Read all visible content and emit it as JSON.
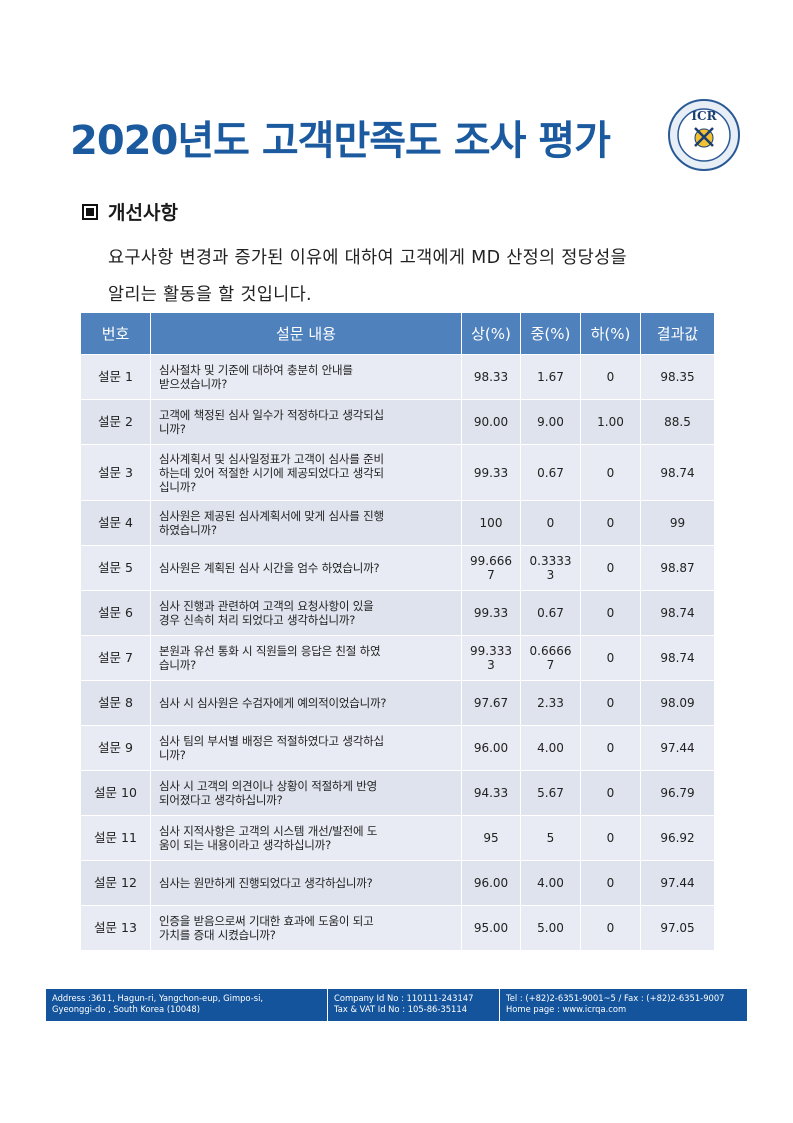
{
  "title": "2020년도 고객만족도 조사 평가",
  "logo_text": "ICR",
  "section": {
    "heading": "개선사항",
    "body_line1": "요구사항 변경과 증가된 이유에 대하여 고객에게 MD 산정의 정당성을",
    "body_line2": "알리는 활동을 할 것입니다."
  },
  "table": {
    "headers": [
      "번호",
      "설문 내용",
      "상(%)",
      "중(%)",
      "하(%)",
      "결과값"
    ],
    "rows": [
      {
        "no": "설문 1",
        "q1": "심사절차 및 기준에 대하여 충분히 안내를",
        "q2": "받으셨습니까?",
        "high": "98.33",
        "mid": "1.67",
        "low": "0",
        "result": "98.35"
      },
      {
        "no": "설문 2",
        "q1": "고객에 책정된 심사 일수가 적정하다고 생각되십",
        "q2": "니까?",
        "high": "90.00",
        "mid": "9.00",
        "low": "1.00",
        "result": "88.5"
      },
      {
        "no": "설문 3",
        "q1": "심사계획서 및 심사일정표가 고객이 심사를 준비",
        "q2": "하는데 있어 적절한 시기에 제공되었다고 생각되",
        "q3": "십니까?",
        "high": "99.33",
        "mid": "0.67",
        "low": "0",
        "result": "98.74"
      },
      {
        "no": "설문 4",
        "q1": "심사원은 제공된 심사계획서에 맞게 심사를 진행",
        "q2": "하였습니까?",
        "high": "100",
        "mid": "0",
        "low": "0",
        "result": "99"
      },
      {
        "no": "설문 5",
        "q1": "심사원은 계획된 심사 시간을 엄수 하였습니까?",
        "high1": "99.666",
        "high2": "7",
        "mid1": "0.3333",
        "mid2": "3",
        "low": "0",
        "result": "98.87"
      },
      {
        "no": "설문 6",
        "q1": "심사 진행과 관련하여 고객의 요청사항이 있을",
        "q2": "경우 신속히 처리 되었다고 생각하십니까?",
        "high": "99.33",
        "mid": "0.67",
        "low": "0",
        "result": "98.74"
      },
      {
        "no": "설문 7",
        "q1": "본원과 유선 통화 시 직원들의 응답은 친절 하였",
        "q2": "습니까?",
        "high1": "99.333",
        "high2": "3",
        "mid1": "0.6666",
        "mid2": "7",
        "low": "0",
        "result": "98.74"
      },
      {
        "no": "설문 8",
        "q1": "심사 시 심사원은 수검자에게 예의적이었습니까?",
        "high": "97.67",
        "mid": "2.33",
        "low": "0",
        "result": "98.09"
      },
      {
        "no": "설문 9",
        "q1": "심사 팀의 부서별 배정은 적절하였다고 생각하십",
        "q2": "니까?",
        "high": "96.00",
        "mid": "4.00",
        "low": "0",
        "result": "97.44"
      },
      {
        "no": "설문 10",
        "q1": "심사 시 고객의 의견이나 상황이 적절하게 반영",
        "q2": "되어졌다고 생각하십니까?",
        "high": "94.33",
        "mid": "5.67",
        "low": "0",
        "result": "96.79"
      },
      {
        "no": "설문 11",
        "q1": "심사 지적사항은 고객의 시스템 개선/발전에 도",
        "q2": "움이 되는 내용이라고 생각하십니까?",
        "high": "95",
        "mid": "5",
        "low": "0",
        "result": "96.92"
      },
      {
        "no": "설문 12",
        "q1": "심사는 원만하게 진행되었다고 생각하십니까?",
        "high": "96.00",
        "mid": "4.00",
        "low": "0",
        "result": "97.44"
      },
      {
        "no": "설문 13",
        "q1": "인증을 받음으로써 기대한 효과에 도움이 되고",
        "q2": "가치를 증대 시켰습니까?",
        "high": "95.00",
        "mid": "5.00",
        "low": "0",
        "result": "97.05"
      }
    ]
  },
  "footer": {
    "address1": "Address :3611, Hagun-ri, Yangchon-eup, Gimpo-si,",
    "address2": "Gyeonggi-do , South Korea (10048)",
    "company1": "Company Id No : 110111-243147",
    "company2": "Tax & VAT Id No : 105-86-35114",
    "contact1": "Tel : (+82)2-6351-9001~5 / Fax : (+82)2-6351-9007",
    "contact2": "Home page : www.icrqa.com"
  },
  "colors": {
    "title": "#1b5a9e",
    "header_bg": "#4f81bd",
    "footer_bg": "#14549c"
  }
}
